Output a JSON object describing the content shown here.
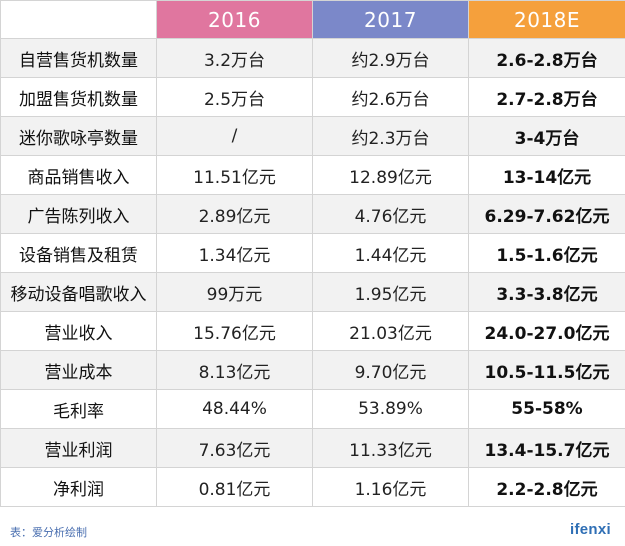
{
  "table": {
    "headers": [
      "",
      "2016",
      "2017",
      "2018E"
    ],
    "rows": [
      {
        "label": "自营售货机数量",
        "v2016": "3.2万台",
        "v2017": "约2.9万台",
        "v2018": "2.6-2.8万台"
      },
      {
        "label": "加盟售货机数量",
        "v2016": "2.5万台",
        "v2017": "约2.6万台",
        "v2018": "2.7-2.8万台"
      },
      {
        "label": "迷你歌咏亭数量",
        "v2016": "/",
        "v2017": "约2.3万台",
        "v2018": "3-4万台"
      },
      {
        "label": "商品销售收入",
        "v2016": "11.51亿元",
        "v2017": "12.89亿元",
        "v2018": "13-14亿元"
      },
      {
        "label": "广告陈列收入",
        "v2016": "2.89亿元",
        "v2017": "4.76亿元",
        "v2018": "6.29-7.62亿元"
      },
      {
        "label": "设备销售及租赁",
        "v2016": "1.34亿元",
        "v2017": "1.44亿元",
        "v2018": "1.5-1.6亿元"
      },
      {
        "label": "移动设备唱歌收入",
        "v2016": "99万元",
        "v2017": "1.95亿元",
        "v2018": "3.3-3.8亿元"
      },
      {
        "label": "营业收入",
        "v2016": "15.76亿元",
        "v2017": "21.03亿元",
        "v2018": "24.0-27.0亿元"
      },
      {
        "label": "营业成本",
        "v2016": "8.13亿元",
        "v2017": "9.70亿元",
        "v2018": "10.5-11.5亿元"
      },
      {
        "label": "毛利率",
        "v2016": "48.44%",
        "v2017": "53.89%",
        "v2018": "55-58%"
      },
      {
        "label": "营业利润",
        "v2016": "7.63亿元",
        "v2017": "11.33亿元",
        "v2018": "13.4-15.7亿元"
      },
      {
        "label": "净利润",
        "v2016": "0.81亿元",
        "v2017": "1.16亿元",
        "v2018": "2.2-2.8亿元"
      }
    ]
  },
  "footer": {
    "note": "表：爱分析绘制",
    "brand": "ifenxi"
  },
  "colors": {
    "header_2016": "#e0769f",
    "header_2017": "#7b88c9",
    "header_2018": "#f5a03c",
    "stripe": "#f2f2f2",
    "brand": "#2f6fb5"
  }
}
